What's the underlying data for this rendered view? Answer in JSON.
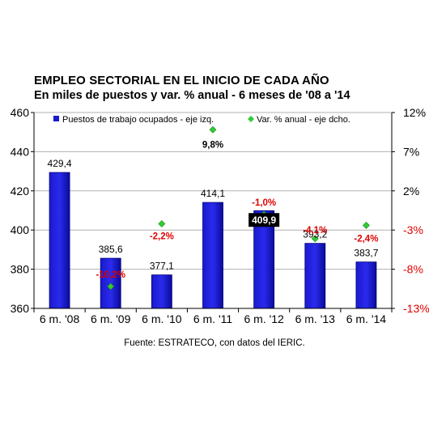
{
  "title": "EMPLEO SECTORIAL EN EL INICIO DE CADA AÑO",
  "subtitle": "En miles de puestos y var. % anual - 6 meses de '08 a '14",
  "source": "Fuente: ESTRATECO, con datos del IERIC.",
  "chart_data": {
    "type": "bar",
    "categories": [
      "6 m. '08",
      "6 m. '09",
      "6 m. '10",
      "6 m. '11",
      "6 m. '12",
      "6 m. '13",
      "6 m. '14"
    ],
    "series": [
      {
        "name": "Puestos de trabajo ocupados - eje izq.",
        "type": "bar",
        "axis": "left",
        "values": [
          429.4,
          385.6,
          377.1,
          414.1,
          409.9,
          393.2,
          383.7
        ],
        "labels": [
          "429,4",
          "385,6",
          "377,1",
          "414,1",
          "409,9",
          "393,2",
          "383,7"
        ],
        "color": "#1010d0"
      },
      {
        "name": "Var. % anual - eje dcho.",
        "type": "scatter",
        "axis": "right",
        "values": [
          null,
          -10.2,
          -2.2,
          9.8,
          -1.0,
          -4.1,
          -2.4
        ],
        "labels": [
          null,
          "-10,2%",
          "-2,2%",
          "9,8%",
          "-1,0%",
          "-4,1%",
          "-2,4%"
        ],
        "color": "#33cc33"
      }
    ],
    "left_axis": {
      "ylim": [
        360,
        460
      ],
      "ticks": [
        "360",
        "380",
        "400",
        "420",
        "440",
        "460"
      ]
    },
    "right_axis": {
      "ylim": [
        -13,
        12
      ],
      "ticks": [
        "-13%",
        "-8%",
        "-3%",
        "2%",
        "7%",
        "12%"
      ],
      "color_negative": "#e00000"
    },
    "legend": "top",
    "grid": true
  }
}
